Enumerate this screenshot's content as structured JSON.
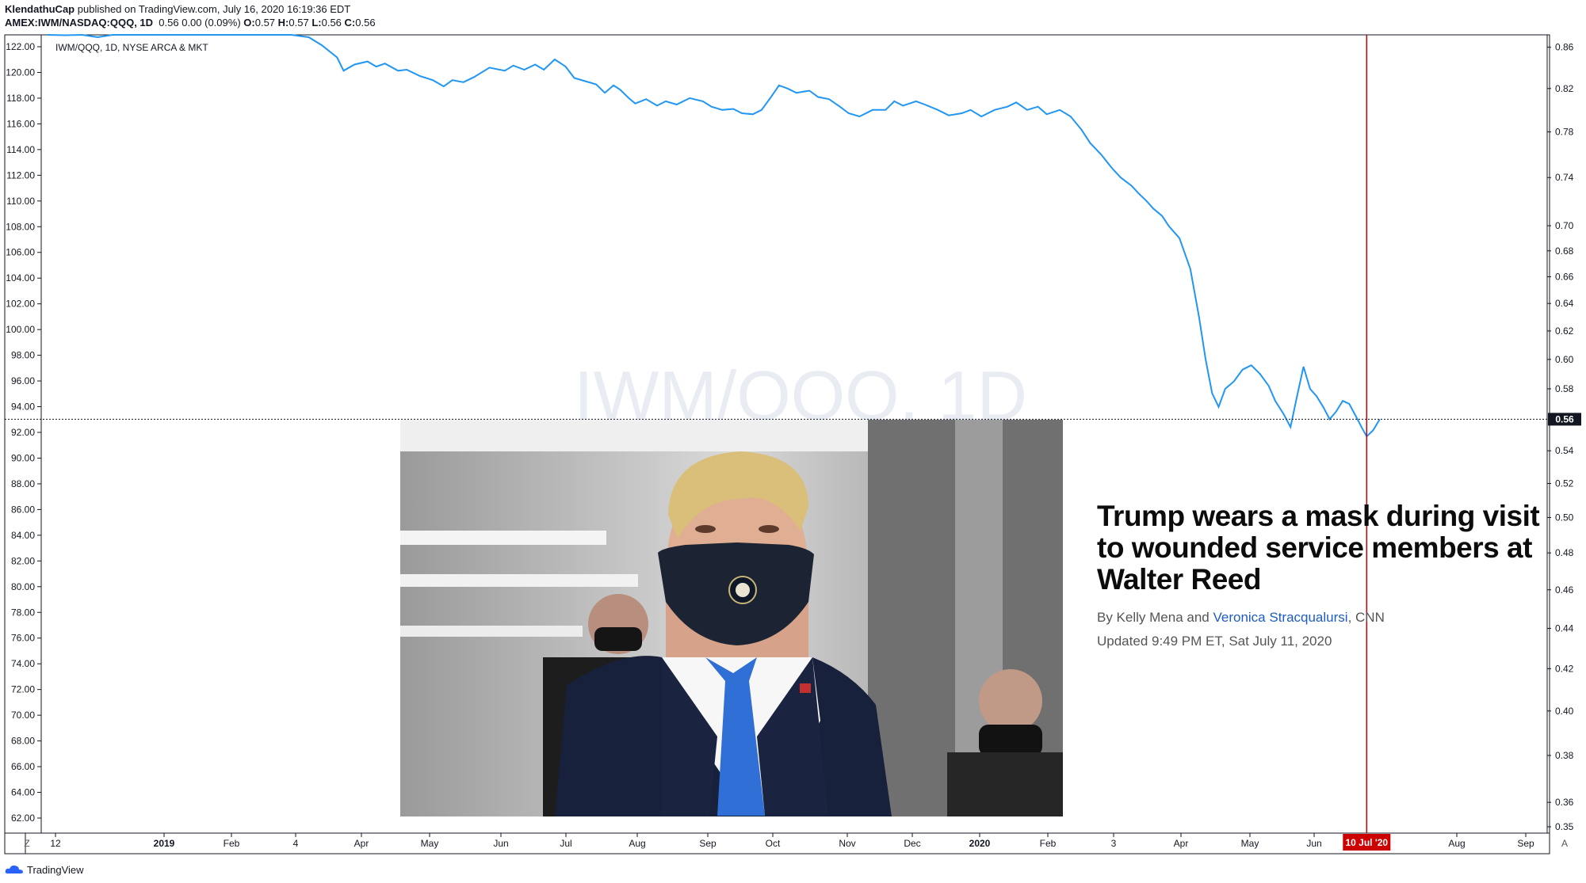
{
  "header": {
    "author": "KlendathuCap",
    "published": "published on TradingView.com, July 16, 2020 16:19:36 EDT",
    "symbol": "AMEX:IWM/NASDAQ:QQQ, 1D",
    "quote": "0.56 0.00 (0.09%)",
    "o_label": "O:",
    "o_val": "0.57",
    "h_label": "H:",
    "h_val": "0.57",
    "l_label": "L:",
    "l_val": "0.56",
    "c_label": "C:",
    "c_val": "0.56"
  },
  "legend_label": "IWM/QQQ, 1D, NYSE ARCA & MKT",
  "watermark": "IWM/QQQ, 1D",
  "article": {
    "headline": "Trump wears a mask during visit to wounded service members at Walter Reed",
    "by": "By Kelly Mena and ",
    "author2": "Veronica Stracqualursi",
    "source": ", CNN",
    "updated": "Updated 9:49 PM ET, Sat July 11, 2020"
  },
  "brand": "TradingView",
  "colors": {
    "line": "#2196f3",
    "marker": "#cc0000",
    "grid": "#f0f3fa"
  },
  "chart_data": {
    "type": "line",
    "left_axis": {
      "ticks": [
        "122.00",
        "120.00",
        "118.00",
        "116.00",
        "114.00",
        "112.00",
        "110.00",
        "108.00",
        "106.00",
        "104.00",
        "102.00",
        "100.00",
        "98.00",
        "96.00",
        "94.00",
        "92.00",
        "90.00",
        "88.00",
        "86.00",
        "84.00",
        "82.00",
        "80.00",
        "78.00",
        "76.00",
        "74.00",
        "72.00",
        "70.00",
        "68.00",
        "66.00",
        "64.00",
        "62.00"
      ]
    },
    "right_axis": {
      "ticks": [
        "0.86",
        "0.82",
        "0.78",
        "0.74",
        "0.70",
        "0.68",
        "0.66",
        "0.64",
        "0.62",
        "0.60",
        "0.58",
        "0.54",
        "0.52",
        "0.50",
        "0.48",
        "0.46",
        "0.44",
        "0.42",
        "0.40",
        "0.38",
        "0.36",
        "0.35"
      ],
      "scale": "log",
      "range": [
        0.35,
        0.87
      ]
    },
    "x_ticks": [
      "12",
      "2019",
      "Feb",
      "4",
      "Apr",
      "May",
      "Jun",
      "Jul",
      "Aug",
      "Sep",
      "Oct",
      "Nov",
      "Dec",
      "2020",
      "Feb",
      "3",
      "Apr",
      "May",
      "Jun",
      "Aug",
      "Sep"
    ],
    "x_tick_bold": [
      "2019",
      "2020"
    ],
    "x_range": [
      "2018-11-12",
      "2020-09-28"
    ],
    "last_price": "0.56",
    "marker_date": "2020-07-10",
    "marker_label": "10 Jul '20",
    "corner_left": "Z",
    "corner_right": "A",
    "series": [
      {
        "values": [
          [
            "2018-11-12",
            0.88
          ],
          [
            "2018-11-20",
            0.872
          ],
          [
            "2018-11-28",
            0.876
          ],
          [
            "2018-12-05",
            0.87
          ],
          [
            "2018-12-12",
            0.88
          ],
          [
            "2018-12-20",
            0.886
          ],
          [
            "2018-12-28",
            0.9
          ],
          [
            "2019-01-08",
            0.905
          ],
          [
            "2019-01-18",
            0.9
          ],
          [
            "2019-01-28",
            0.902
          ],
          [
            "2019-02-08",
            0.91
          ],
          [
            "2019-02-18",
            0.905
          ],
          [
            "2019-02-26",
            0.895
          ],
          [
            "2019-03-04",
            0.885
          ],
          [
            "2019-03-12",
            0.87
          ],
          [
            "2019-03-18",
            0.862
          ],
          [
            "2019-03-25",
            0.85
          ],
          [
            "2019-03-28",
            0.837
          ],
          [
            "2019-04-02",
            0.843
          ],
          [
            "2019-04-08",
            0.846
          ],
          [
            "2019-04-12",
            0.841
          ],
          [
            "2019-04-16",
            0.844
          ],
          [
            "2019-04-22",
            0.837
          ],
          [
            "2019-04-26",
            0.838
          ],
          [
            "2019-05-02",
            0.832
          ],
          [
            "2019-05-08",
            0.828
          ],
          [
            "2019-05-13",
            0.822
          ],
          [
            "2019-05-17",
            0.828
          ],
          [
            "2019-05-22",
            0.826
          ],
          [
            "2019-05-27",
            0.831
          ],
          [
            "2019-06-03",
            0.84
          ],
          [
            "2019-06-10",
            0.837
          ],
          [
            "2019-06-14",
            0.842
          ],
          [
            "2019-06-19",
            0.838
          ],
          [
            "2019-06-24",
            0.843
          ],
          [
            "2019-06-28",
            0.838
          ],
          [
            "2019-07-03",
            0.848
          ],
          [
            "2019-07-08",
            0.841
          ],
          [
            "2019-07-12",
            0.83
          ],
          [
            "2019-07-17",
            0.827
          ],
          [
            "2019-07-22",
            0.824
          ],
          [
            "2019-07-26",
            0.816
          ],
          [
            "2019-07-30",
            0.823
          ],
          [
            "2019-08-02",
            0.819
          ],
          [
            "2019-08-06",
            0.811
          ],
          [
            "2019-08-09",
            0.806
          ],
          [
            "2019-08-14",
            0.81
          ],
          [
            "2019-08-19",
            0.804
          ],
          [
            "2019-08-23",
            0.808
          ],
          [
            "2019-08-28",
            0.805
          ],
          [
            "2019-09-03",
            0.811
          ],
          [
            "2019-09-09",
            0.808
          ],
          [
            "2019-09-13",
            0.803
          ],
          [
            "2019-09-18",
            0.8
          ],
          [
            "2019-09-23",
            0.801
          ],
          [
            "2019-09-27",
            0.797
          ],
          [
            "2019-10-02",
            0.796
          ],
          [
            "2019-10-06",
            0.8
          ],
          [
            "2019-10-10",
            0.811
          ],
          [
            "2019-10-14",
            0.823
          ],
          [
            "2019-10-18",
            0.82
          ],
          [
            "2019-10-22",
            0.816
          ],
          [
            "2019-10-28",
            0.818
          ],
          [
            "2019-11-01",
            0.812
          ],
          [
            "2019-11-06",
            0.81
          ],
          [
            "2019-11-11",
            0.803
          ],
          [
            "2019-11-15",
            0.797
          ],
          [
            "2019-11-20",
            0.794
          ],
          [
            "2019-11-26",
            0.8
          ],
          [
            "2019-12-02",
            0.8
          ],
          [
            "2019-12-06",
            0.808
          ],
          [
            "2019-12-10",
            0.804
          ],
          [
            "2019-12-16",
            0.808
          ],
          [
            "2019-12-20",
            0.805
          ],
          [
            "2019-12-26",
            0.8
          ],
          [
            "2019-12-31",
            0.795
          ],
          [
            "2020-01-06",
            0.797
          ],
          [
            "2020-01-10",
            0.8
          ],
          [
            "2020-01-15",
            0.794
          ],
          [
            "2020-01-21",
            0.8
          ],
          [
            "2020-01-27",
            0.803
          ],
          [
            "2020-01-31",
            0.807
          ],
          [
            "2020-02-05",
            0.8
          ],
          [
            "2020-02-10",
            0.803
          ],
          [
            "2020-02-14",
            0.796
          ],
          [
            "2020-02-20",
            0.8
          ],
          [
            "2020-02-25",
            0.794
          ],
          [
            "2020-03-01",
            0.782
          ],
          [
            "2020-03-05",
            0.77
          ],
          [
            "2020-03-10",
            0.76
          ],
          [
            "2020-03-15",
            0.748
          ],
          [
            "2020-03-19",
            0.74
          ],
          [
            "2020-03-24",
            0.733
          ],
          [
            "2020-03-27",
            0.727
          ],
          [
            "2020-03-31",
            0.72
          ],
          [
            "2020-04-03",
            0.714
          ],
          [
            "2020-04-07",
            0.708
          ],
          [
            "2020-04-10",
            0.7
          ],
          [
            "2020-04-15",
            0.69
          ],
          [
            "2020-04-20",
            0.666
          ],
          [
            "2020-04-24",
            0.63
          ],
          [
            "2020-04-27",
            0.6
          ],
          [
            "2020-04-30",
            0.577
          ],
          [
            "2020-05-03",
            0.568
          ],
          [
            "2020-05-06",
            0.58
          ],
          [
            "2020-05-10",
            0.585
          ],
          [
            "2020-05-14",
            0.593
          ],
          [
            "2020-05-18",
            0.596
          ],
          [
            "2020-05-22",
            0.59
          ],
          [
            "2020-05-26",
            0.582
          ],
          [
            "2020-05-29",
            0.572
          ],
          [
            "2020-06-02",
            0.563
          ],
          [
            "2020-06-05",
            0.555
          ],
          [
            "2020-06-08",
            0.575
          ],
          [
            "2020-06-11",
            0.595
          ],
          [
            "2020-06-14",
            0.58
          ],
          [
            "2020-06-17",
            0.575
          ],
          [
            "2020-06-20",
            0.568
          ],
          [
            "2020-06-23",
            0.56
          ],
          [
            "2020-06-26",
            0.565
          ],
          [
            "2020-06-29",
            0.572
          ],
          [
            "2020-07-02",
            0.57
          ],
          [
            "2020-07-05",
            0.562
          ],
          [
            "2020-07-08",
            0.554
          ],
          [
            "2020-07-10",
            0.549
          ],
          [
            "2020-07-13",
            0.553
          ],
          [
            "2020-07-16",
            0.56
          ]
        ]
      }
    ]
  }
}
